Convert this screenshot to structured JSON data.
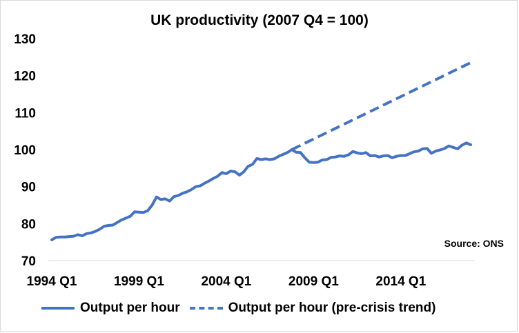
{
  "chart_data": {
    "type": "line",
    "title": "UK productivity (2007 Q4 = 100)",
    "source_note": "Source: ONS",
    "ylim": [
      70,
      130
    ],
    "yticks": [
      70,
      80,
      90,
      100,
      110,
      120,
      130
    ],
    "xtick_labels": [
      "1994 Q1",
      "1999 Q1",
      "2004 Q1",
      "2009 Q1",
      "2014 Q1"
    ],
    "x": [
      "1994 Q1",
      "1994 Q2",
      "1994 Q3",
      "1994 Q4",
      "1995 Q1",
      "1995 Q2",
      "1995 Q3",
      "1995 Q4",
      "1996 Q1",
      "1996 Q2",
      "1996 Q3",
      "1996 Q4",
      "1997 Q1",
      "1997 Q2",
      "1997 Q3",
      "1997 Q4",
      "1998 Q1",
      "1998 Q2",
      "1998 Q3",
      "1998 Q4",
      "1999 Q1",
      "1999 Q2",
      "1999 Q3",
      "1999 Q4",
      "2000 Q1",
      "2000 Q2",
      "2000 Q3",
      "2000 Q4",
      "2001 Q1",
      "2001 Q2",
      "2001 Q3",
      "2001 Q4",
      "2002 Q1",
      "2002 Q2",
      "2002 Q3",
      "2002 Q4",
      "2003 Q1",
      "2003 Q2",
      "2003 Q3",
      "2003 Q4",
      "2004 Q1",
      "2004 Q2",
      "2004 Q3",
      "2004 Q4",
      "2005 Q1",
      "2005 Q2",
      "2005 Q3",
      "2005 Q4",
      "2006 Q1",
      "2006 Q2",
      "2006 Q3",
      "2006 Q4",
      "2007 Q1",
      "2007 Q2",
      "2007 Q3",
      "2007 Q4",
      "2008 Q1",
      "2008 Q2",
      "2008 Q3",
      "2008 Q4",
      "2009 Q1",
      "2009 Q2",
      "2009 Q3",
      "2009 Q4",
      "2010 Q1",
      "2010 Q2",
      "2010 Q3",
      "2010 Q4",
      "2011 Q1",
      "2011 Q2",
      "2011 Q3",
      "2011 Q4",
      "2012 Q1",
      "2012 Q2",
      "2012 Q3",
      "2012 Q4",
      "2013 Q1",
      "2013 Q2",
      "2013 Q3",
      "2013 Q4",
      "2014 Q1",
      "2014 Q2",
      "2014 Q3",
      "2014 Q4",
      "2015 Q1",
      "2015 Q2",
      "2015 Q3",
      "2015 Q4",
      "2016 Q1",
      "2016 Q2",
      "2016 Q3",
      "2016 Q4",
      "2017 Q1",
      "2017 Q2",
      "2017 Q3",
      "2017 Q4",
      "2018 Q1"
    ],
    "series": [
      {
        "name": "Output per hour",
        "style": "solid",
        "color": "#4472c4",
        "values": [
          75.6,
          76.3,
          76.4,
          76.4,
          76.5,
          76.6,
          77.0,
          76.7,
          77.3,
          77.5,
          77.9,
          78.5,
          79.3,
          79.5,
          79.6,
          80.3,
          81.0,
          81.5,
          82.0,
          83.2,
          83.1,
          83.0,
          83.5,
          85.0,
          87.2,
          86.5,
          86.7,
          86.1,
          87.3,
          87.6,
          88.2,
          88.6,
          89.2,
          90.0,
          90.2,
          90.9,
          91.5,
          92.2,
          92.8,
          93.8,
          93.5,
          94.2,
          94.0,
          93.1,
          94.0,
          95.5,
          96.0,
          97.6,
          97.3,
          97.5,
          97.3,
          97.5,
          98.2,
          98.7,
          99.2,
          100.0,
          99.3,
          99.2,
          97.8,
          96.6,
          96.5,
          96.6,
          97.2,
          97.3,
          97.9,
          98.0,
          98.3,
          98.2,
          98.6,
          99.5,
          99.1,
          98.9,
          99.2,
          98.3,
          98.4,
          98.0,
          98.3,
          98.4,
          97.8,
          98.2,
          98.4,
          98.4,
          98.9,
          99.4,
          99.6,
          100.2,
          100.3,
          99.0,
          99.6,
          99.9,
          100.3,
          101.0,
          100.6,
          100.2,
          101.2,
          101.8,
          101.3
        ]
      },
      {
        "name": "Output per hour (pre-crisis trend)",
        "style": "dashed",
        "color": "#4472c4",
        "start": "2007 Q4",
        "start_value": 100.0,
        "end": "2018 Q1",
        "end_value": 123.5
      }
    ]
  }
}
